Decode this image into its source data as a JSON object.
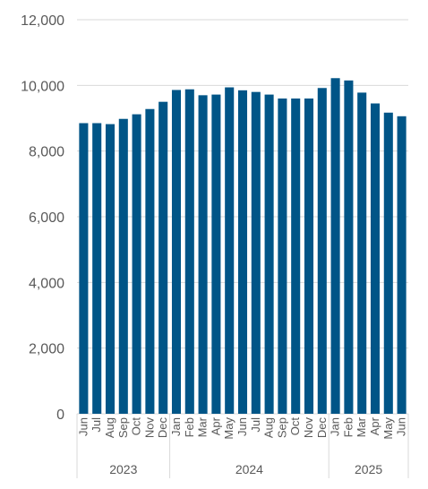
{
  "chart_data": {
    "type": "bar",
    "title": "",
    "xlabel": "",
    "ylabel": "",
    "ylim": [
      0,
      12000
    ],
    "yticks": [
      0,
      2000,
      4000,
      6000,
      8000,
      10000,
      12000
    ],
    "ytick_labels": [
      "0",
      "2,000",
      "4,000",
      "6,000",
      "8,000",
      "10,000",
      "12,000"
    ],
    "grid": true,
    "legend": "none",
    "bar_color": "#005587",
    "categories": [
      "Jun",
      "Jul",
      "Aug",
      "Sep",
      "Oct",
      "Nov",
      "Dec",
      "Jan",
      "Feb",
      "Mar",
      "Apr",
      "May",
      "Jun",
      "Jul",
      "Aug",
      "Sep",
      "Oct",
      "Nov",
      "Dec",
      "Jan",
      "Feb",
      "Mar",
      "Apr",
      "May",
      "Jun"
    ],
    "values": [
      8850,
      8850,
      8820,
      8980,
      9120,
      9280,
      9500,
      9860,
      9880,
      9700,
      9720,
      9940,
      9850,
      9800,
      9720,
      9600,
      9600,
      9600,
      9920,
      10220,
      10150,
      9780,
      9450,
      9170,
      9060
    ],
    "year_groups": [
      {
        "label": "2023",
        "start": 0,
        "count": 7
      },
      {
        "label": "2024",
        "start": 7,
        "count": 12
      },
      {
        "label": "2025",
        "start": 19,
        "count": 6
      }
    ]
  }
}
